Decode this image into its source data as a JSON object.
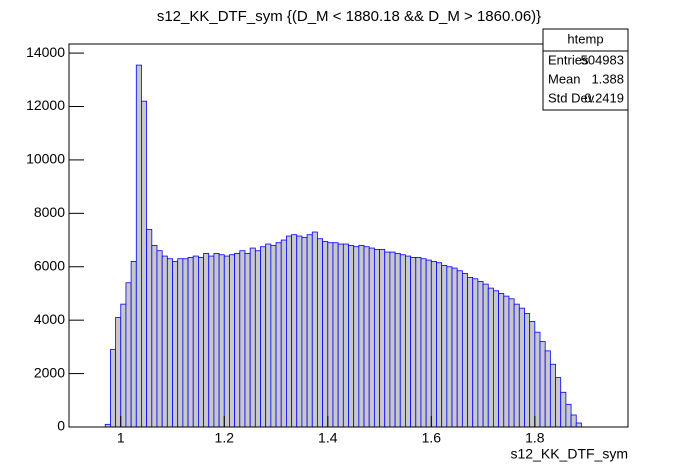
{
  "chart_data": {
    "type": "histogram",
    "title": "s12_KK_DTF_sym {(D_M < 1880.18 && D_M > 1860.06)}",
    "x_label": "s12_KK_DTF_sym",
    "bins": [
      0.97,
      0.98,
      0.99,
      1.0,
      1.01,
      1.02,
      1.03,
      1.04,
      1.05,
      1.06,
      1.07,
      1.08,
      1.09,
      1.1,
      1.11,
      1.12,
      1.13,
      1.14,
      1.15,
      1.16,
      1.17,
      1.18,
      1.19,
      1.2,
      1.21,
      1.22,
      1.23,
      1.24,
      1.25,
      1.26,
      1.27,
      1.28,
      1.29,
      1.3,
      1.31,
      1.32,
      1.33,
      1.34,
      1.35,
      1.36,
      1.37,
      1.38,
      1.39,
      1.4,
      1.41,
      1.42,
      1.43,
      1.44,
      1.45,
      1.46,
      1.47,
      1.48,
      1.49,
      1.5,
      1.51,
      1.52,
      1.53,
      1.54,
      1.55,
      1.56,
      1.57,
      1.58,
      1.59,
      1.6,
      1.61,
      1.62,
      1.63,
      1.64,
      1.65,
      1.66,
      1.67,
      1.68,
      1.69,
      1.7,
      1.71,
      1.72,
      1.73,
      1.74,
      1.75,
      1.76,
      1.77,
      1.78,
      1.79,
      1.8,
      1.81,
      1.82,
      1.83,
      1.84,
      1.85,
      1.86,
      1.87,
      1.88,
      1.89,
      1.9
    ],
    "values": [
      100,
      2900,
      4100,
      4600,
      5400,
      6200,
      13550,
      12200,
      7400,
      6800,
      6600,
      6400,
      6300,
      6200,
      6300,
      6300,
      6350,
      6400,
      6350,
      6500,
      6400,
      6500,
      6450,
      6400,
      6450,
      6500,
      6600,
      6500,
      6700,
      6600,
      6750,
      6850,
      6800,
      6900,
      7000,
      7150,
      7200,
      7150,
      7100,
      7200,
      7300,
      7050,
      6950,
      6900,
      6900,
      6850,
      6850,
      6800,
      6750,
      6800,
      6750,
      6700,
      6650,
      6650,
      6550,
      6550,
      6500,
      6450,
      6400,
      6350,
      6350,
      6300,
      6250,
      6200,
      6150,
      6050,
      6000,
      5950,
      5850,
      5750,
      5600,
      5550,
      5450,
      5350,
      5200,
      5100,
      5000,
      4900,
      4800,
      4600,
      4450,
      4250,
      3950,
      3550,
      3200,
      2850,
      2350,
      1850,
      1300,
      850,
      450,
      150,
      0
    ],
    "color": "#0000ff",
    "fill": "#c8c8c8",
    "xlim": [
      0.9,
      1.98
    ],
    "ylim": [
      0,
      14340
    ],
    "xticks": [
      1,
      1.2,
      1.4,
      1.6,
      1.8
    ],
    "yticks": [
      0,
      2000,
      4000,
      6000,
      8000,
      10000,
      12000,
      14000
    ],
    "stats_box": {
      "title": "htemp",
      "rows": [
        [
          "Entries",
          504983
        ],
        [
          "Mean",
          1.388
        ],
        [
          "Std Dev",
          0.2419
        ]
      ]
    }
  }
}
